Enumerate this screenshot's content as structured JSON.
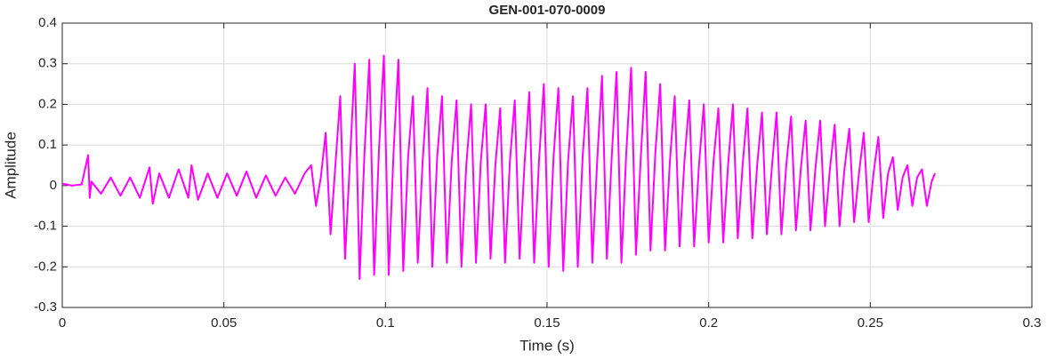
{
  "chart_data": {
    "type": "line",
    "title": "GEN-001-070-0009",
    "xlabel": "Time (s)",
    "ylabel": "Amplitude",
    "color": "#ff00ff",
    "grid": true,
    "xlim": [
      0,
      0.3
    ],
    "xticks": [
      0,
      0.05,
      0.1,
      0.15,
      0.2,
      0.25,
      0.3
    ],
    "ylim": [
      -0.3,
      0.4
    ],
    "yticks": [
      -0.3,
      -0.2,
      -0.1,
      0,
      0.1,
      0.2,
      0.3,
      0.4
    ],
    "x": [
      0,
      0.003,
      0.006,
      0.008,
      0.0085,
      0.009,
      0.012,
      0.015,
      0.018,
      0.021,
      0.024,
      0.027,
      0.028,
      0.03,
      0.033,
      0.036,
      0.039,
      0.04,
      0.042,
      0.045,
      0.048,
      0.051,
      0.054,
      0.057,
      0.06,
      0.063,
      0.066,
      0.069,
      0.072,
      0.075,
      0.077,
      0.0785,
      0.08,
      0.0815,
      0.083,
      0.0845,
      0.086,
      0.0875,
      0.089,
      0.0905,
      0.092,
      0.0935,
      0.095,
      0.0965,
      0.098,
      0.0995,
      0.101,
      0.1025,
      0.104,
      0.1055,
      0.107,
      0.1085,
      0.11,
      0.1115,
      0.113,
      0.1145,
      0.116,
      0.1175,
      0.119,
      0.1205,
      0.122,
      0.1235,
      0.125,
      0.1265,
      0.128,
      0.1295,
      0.131,
      0.1325,
      0.134,
      0.1355,
      0.137,
      0.1385,
      0.14,
      0.1415,
      0.143,
      0.1445,
      0.146,
      0.1475,
      0.149,
      0.1505,
      0.152,
      0.1535,
      0.155,
      0.1565,
      0.158,
      0.1595,
      0.161,
      0.1625,
      0.164,
      0.1655,
      0.167,
      0.1685,
      0.17,
      0.1715,
      0.173,
      0.1745,
      0.176,
      0.1775,
      0.179,
      0.1805,
      0.182,
      0.1835,
      0.185,
      0.1865,
      0.188,
      0.1895,
      0.191,
      0.1925,
      0.194,
      0.1955,
      0.197,
      0.1985,
      0.2,
      0.2015,
      0.203,
      0.2045,
      0.206,
      0.2075,
      0.209,
      0.2105,
      0.212,
      0.2135,
      0.215,
      0.2165,
      0.218,
      0.2195,
      0.221,
      0.2225,
      0.224,
      0.2255,
      0.227,
      0.2285,
      0.23,
      0.2315,
      0.233,
      0.2345,
      0.236,
      0.2375,
      0.239,
      0.2405,
      0.242,
      0.2435,
      0.245,
      0.2465,
      0.248,
      0.2495,
      0.251,
      0.2525,
      0.254,
      0.2555,
      0.257,
      0.2585,
      0.26,
      0.2615,
      0.263,
      0.2645,
      0.266,
      0.2675,
      0.269,
      0.27
    ],
    "values": [
      0.005,
      0,
      0.003,
      0.075,
      -0.03,
      0.01,
      -0.02,
      0.02,
      -0.025,
      0.02,
      -0.03,
      0.045,
      -0.045,
      0.03,
      -0.03,
      0.04,
      -0.03,
      0.05,
      -0.035,
      0.03,
      -0.03,
      0.03,
      -0.025,
      0.035,
      -0.03,
      0.025,
      -0.025,
      0.02,
      -0.02,
      0.03,
      0.05,
      -0.05,
      0.02,
      0.13,
      -0.12,
      0.05,
      0.22,
      -0.18,
      0.06,
      0.3,
      -0.23,
      0.08,
      0.31,
      -0.22,
      0.09,
      0.32,
      -0.22,
      0.08,
      0.31,
      -0.21,
      0.07,
      0.22,
      -0.19,
      0.06,
      0.24,
      -0.2,
      0.07,
      0.22,
      -0.19,
      0.06,
      0.21,
      -0.2,
      0.05,
      0.2,
      -0.19,
      0.06,
      0.2,
      -0.18,
      0.05,
      0.19,
      -0.19,
      0.06,
      0.21,
      -0.18,
      0.05,
      0.23,
      -0.19,
      0.06,
      0.25,
      -0.2,
      0.07,
      0.24,
      -0.21,
      0.06,
      0.22,
      -0.2,
      0.07,
      0.24,
      -0.19,
      0.06,
      0.27,
      -0.18,
      0.07,
      0.28,
      -0.19,
      0.08,
      0.29,
      -0.17,
      0.07,
      0.28,
      -0.16,
      0.08,
      0.25,
      -0.16,
      0.06,
      0.22,
      -0.15,
      0.06,
      0.21,
      -0.15,
      0.05,
      0.2,
      -0.14,
      0.06,
      0.19,
      -0.14,
      0.05,
      0.2,
      -0.13,
      0.05,
      0.19,
      -0.13,
      0.05,
      0.18,
      -0.12,
      0.04,
      0.18,
      -0.12,
      0.05,
      0.17,
      -0.11,
      0.04,
      0.16,
      -0.11,
      0.04,
      0.16,
      -0.1,
      0.04,
      0.15,
      -0.1,
      0.04,
      0.14,
      -0.09,
      0.03,
      0.13,
      -0.09,
      0.03,
      0.12,
      -0.08,
      0.03,
      0.07,
      -0.06,
      0.02,
      0.05,
      -0.05,
      0.02,
      0.04,
      -0.05,
      0.01,
      0.03
    ]
  }
}
